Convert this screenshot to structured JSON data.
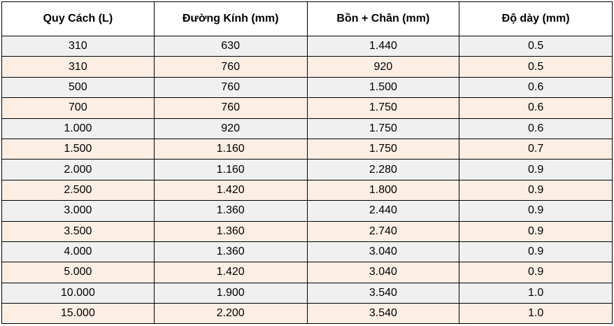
{
  "colors": {
    "header_bg": "#ffffff",
    "row_odd": "#f0f0f0",
    "row_even": "#fdeee4",
    "border": "#000000"
  },
  "headers": [
    "Quy Cách (L)",
    "Đường Kính (mm)",
    "Bồn + Chân (mm)",
    "Độ dày (mm)"
  ],
  "rows": [
    [
      "310",
      "630",
      "1.440",
      "0.5"
    ],
    [
      "310",
      "760",
      "920",
      "0.5"
    ],
    [
      "500",
      "760",
      "1.500",
      "0.6"
    ],
    [
      "700",
      "760",
      "1.750",
      "0.6"
    ],
    [
      "1.000",
      "920",
      "1.750",
      "0.6"
    ],
    [
      "1.500",
      "1.160",
      "1.750",
      "0.7"
    ],
    [
      "2.000",
      "1.160",
      "2.280",
      "0.9"
    ],
    [
      "2.500",
      "1.420",
      "1.800",
      "0.9"
    ],
    [
      "3.000",
      "1.360",
      "2.440",
      "0.9"
    ],
    [
      "3.500",
      "1.360",
      "2.740",
      "0.9"
    ],
    [
      "4.000",
      "1.360",
      "3.040",
      "0.9"
    ],
    [
      "5.000",
      "1.420",
      "3.040",
      "0.9"
    ],
    [
      "10.000",
      "1.900",
      "3.540",
      "1.0"
    ],
    [
      "15.000",
      "2.200",
      "3.540",
      "1.0"
    ]
  ]
}
